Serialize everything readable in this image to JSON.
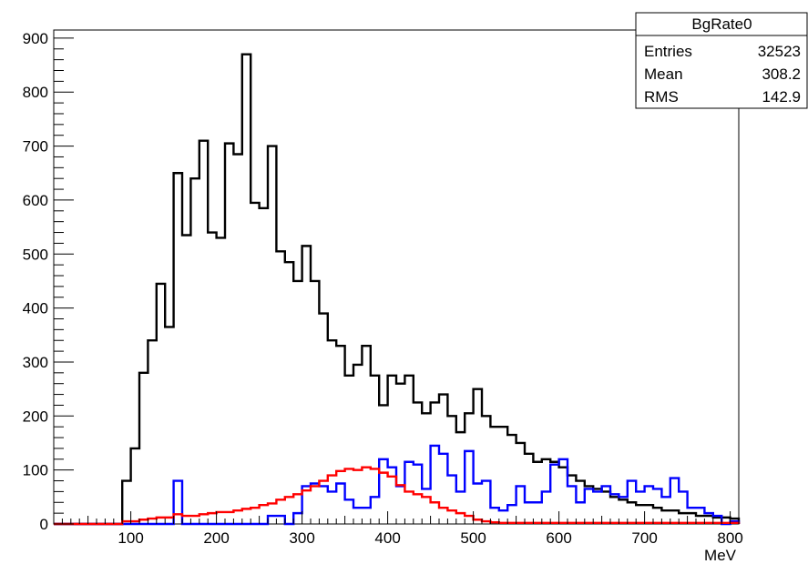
{
  "chart_data": {
    "type": "histogram",
    "xlabel": "MeV",
    "ylabel": "",
    "xlim": [
      10,
      810
    ],
    "ylim": [
      0,
      915
    ],
    "x_ticks": [
      100,
      200,
      300,
      400,
      500,
      600,
      700,
      800
    ],
    "y_ticks": [
      0,
      100,
      200,
      300,
      400,
      500,
      600,
      700,
      800,
      900
    ],
    "grid": false,
    "bin_width": 10,
    "bin_start": 10,
    "series": [
      {
        "color": "#000000",
        "values": [
          0,
          0,
          0,
          0,
          0,
          0,
          0,
          0,
          80,
          140,
          280,
          340,
          445,
          365,
          650,
          535,
          640,
          710,
          540,
          530,
          705,
          685,
          870,
          595,
          585,
          700,
          505,
          485,
          450,
          515,
          450,
          390,
          340,
          330,
          275,
          295,
          330,
          275,
          220,
          275,
          260,
          275,
          225,
          205,
          225,
          240,
          200,
          170,
          205,
          250,
          200,
          180,
          180,
          165,
          150,
          130,
          115,
          120,
          115,
          105,
          90,
          80,
          70,
          65,
          60,
          50,
          45,
          40,
          35,
          35,
          30,
          25,
          25,
          20,
          20,
          15,
          15,
          12,
          12,
          10
        ]
      },
      {
        "color": "#0000ff",
        "values": [
          0,
          0,
          0,
          0,
          0,
          0,
          0,
          0,
          0,
          0,
          0,
          0,
          0,
          0,
          80,
          0,
          0,
          0,
          0,
          0,
          0,
          0,
          0,
          0,
          0,
          15,
          15,
          0,
          20,
          70,
          75,
          70,
          60,
          75,
          45,
          30,
          30,
          50,
          120,
          105,
          70,
          115,
          110,
          65,
          145,
          130,
          90,
          60,
          135,
          75,
          80,
          30,
          25,
          35,
          70,
          40,
          40,
          60,
          110,
          120,
          70,
          40,
          65,
          60,
          70,
          55,
          50,
          80,
          60,
          70,
          65,
          50,
          85,
          60,
          30,
          30,
          20,
          15,
          0,
          5
        ]
      },
      {
        "color": "#ff0000",
        "values": [
          0,
          0,
          0,
          0,
          0,
          0,
          0,
          0,
          5,
          5,
          8,
          10,
          12,
          12,
          18,
          15,
          15,
          18,
          20,
          22,
          22,
          25,
          28,
          30,
          35,
          38,
          45,
          50,
          55,
          62,
          70,
          80,
          90,
          98,
          102,
          100,
          105,
          102,
          95,
          88,
          72,
          60,
          55,
          50,
          40,
          30,
          25,
          20,
          15,
          8,
          5,
          3,
          2,
          2,
          2,
          2,
          2,
          2,
          2,
          2,
          2,
          2,
          2,
          2,
          2,
          2,
          2,
          2,
          2,
          2,
          2,
          2,
          2,
          2,
          2,
          2,
          2,
          2,
          2,
          2
        ]
      }
    ],
    "stats_box": {
      "title": "BgRate0",
      "rows": [
        {
          "label": "Entries",
          "value": "32523"
        },
        {
          "label": "Mean",
          "value": "308.2"
        },
        {
          "label": "RMS",
          "value": "142.9"
        }
      ]
    }
  }
}
